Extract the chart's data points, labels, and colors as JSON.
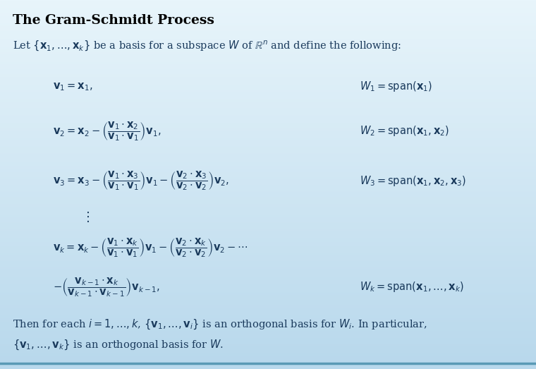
{
  "bg_color": "#cde8f5",
  "bg_top_left": "#e8f5fb",
  "bg_bottom_right": "#b8d8ec",
  "border_color": "#6aaec8",
  "title_color": "#000000",
  "body_color": "#1a3a5c",
  "fig_width": 7.6,
  "fig_height": 5.23,
  "dpi": 100
}
